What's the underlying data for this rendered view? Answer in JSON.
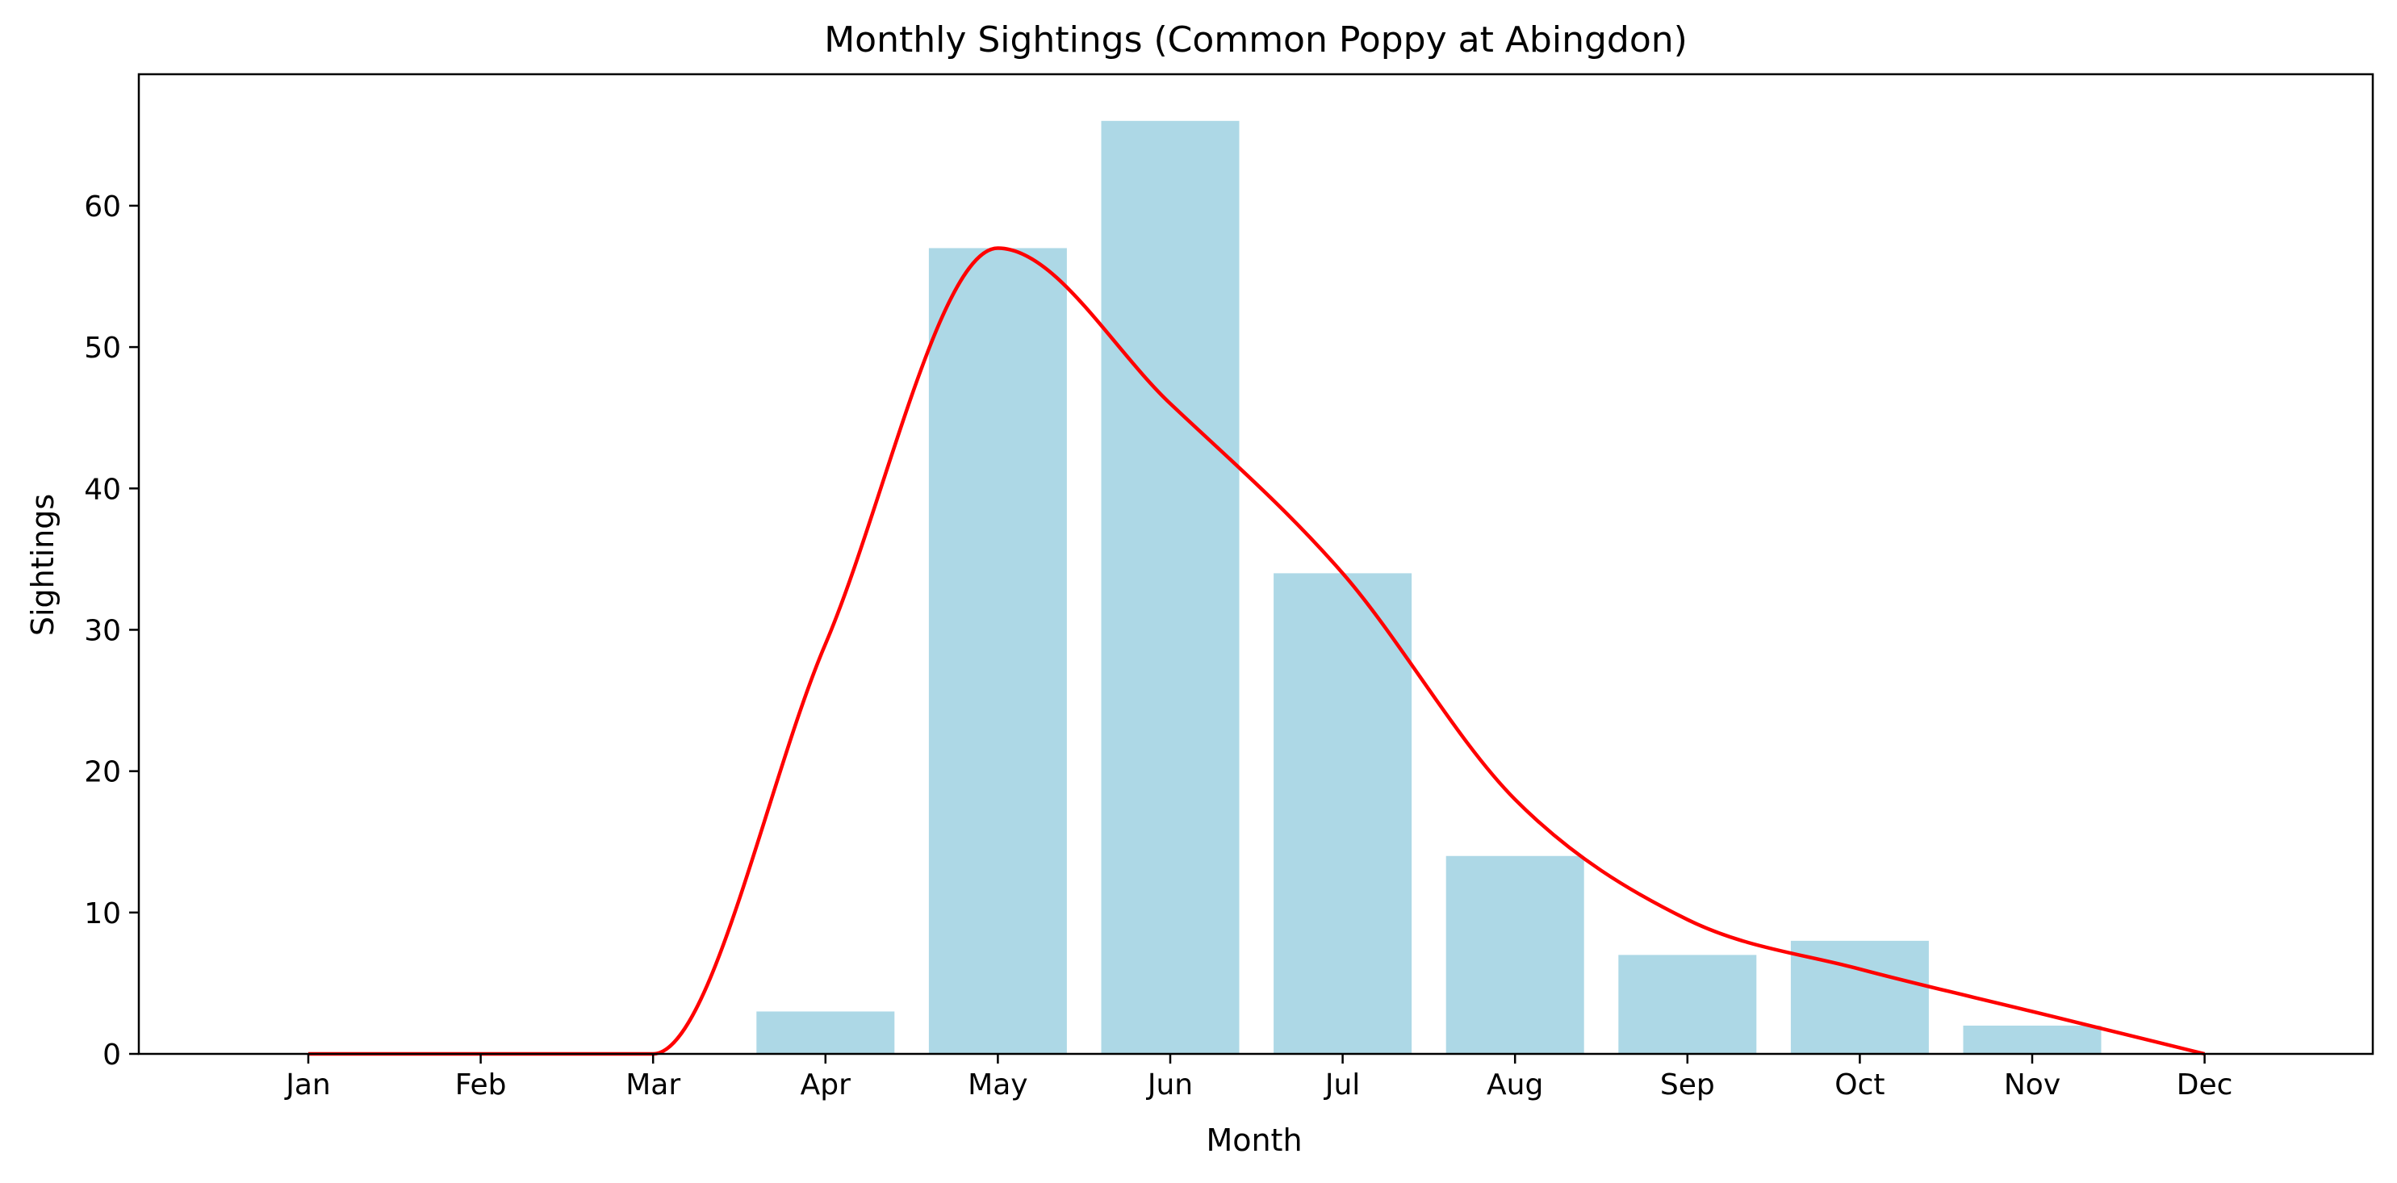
{
  "chart_data": {
    "type": "bar",
    "title": "Monthly Sightings (Common Poppy at Abingdon)",
    "xlabel": "Month",
    "ylabel": "Sightings",
    "categories": [
      "Jan",
      "Feb",
      "Mar",
      "Apr",
      "May",
      "Jun",
      "Jul",
      "Aug",
      "Sep",
      "Oct",
      "Nov",
      "Dec"
    ],
    "values": [
      0,
      0,
      0,
      3,
      57,
      66,
      34,
      14,
      7,
      8,
      2,
      0
    ],
    "y_ticks": [
      0,
      10,
      20,
      30,
      40,
      50,
      60
    ],
    "ylim": [
      0,
      69.3
    ],
    "grid": false,
    "bar_color": "#add8e6",
    "line_color": "#ff0000",
    "overlay": {
      "type": "line",
      "smooth": true,
      "values": [
        0,
        0,
        0,
        29,
        57,
        46,
        34,
        18,
        9.5,
        6,
        3,
        0
      ]
    }
  }
}
